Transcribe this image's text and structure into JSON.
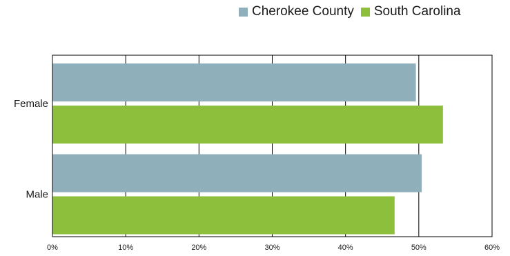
{
  "chart_data": {
    "type": "bar",
    "orientation": "horizontal",
    "categories": [
      "Female",
      "Male"
    ],
    "series": [
      {
        "name": "Cherokee County",
        "values": [
          49.6,
          50.4
        ],
        "color": "#8fb0bb"
      },
      {
        "name": "South Carolina",
        "values": [
          53.3,
          46.7
        ],
        "color": "#8dbf3c"
      }
    ],
    "xlim": [
      0,
      60
    ],
    "xticks": [
      "0%",
      "10%",
      "20%",
      "30%",
      "40%",
      "50%",
      "60%"
    ],
    "legend_position": "top-right",
    "grid": true
  }
}
